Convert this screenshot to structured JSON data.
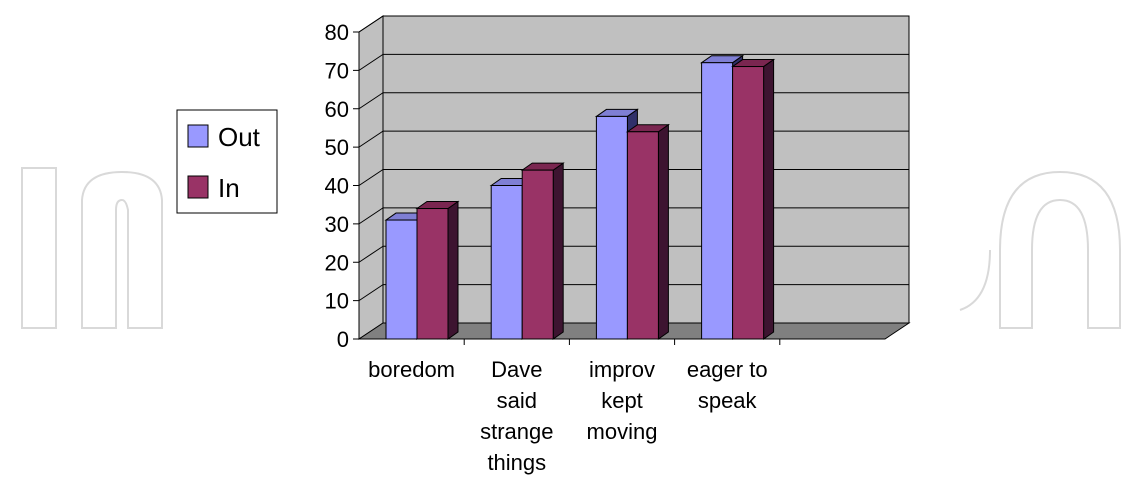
{
  "chart_data": {
    "type": "bar",
    "categories": [
      [
        "boredom"
      ],
      [
        "Dave",
        "said",
        "strange",
        "things"
      ],
      [
        "improv",
        "kept",
        "moving"
      ],
      [
        "eager to",
        "speak"
      ]
    ],
    "series": [
      {
        "name": "Out",
        "values": [
          31,
          40,
          58,
          72
        ]
      },
      {
        "name": "In",
        "values": [
          34,
          44,
          54,
          71
        ]
      }
    ],
    "yticks": [
      0,
      10,
      20,
      30,
      40,
      50,
      60,
      70,
      80
    ],
    "ylim": [
      0,
      80
    ],
    "grid": true,
    "legend": "left",
    "colors": {
      "wall": "#c0c0c0",
      "floor": "#808080",
      "out_front": "#9999ff",
      "out_top": "#7f7fd4",
      "out_side": "#30306a",
      "in_front": "#993366",
      "in_top": "#7a2650",
      "in_side": "#3d1430"
    }
  }
}
